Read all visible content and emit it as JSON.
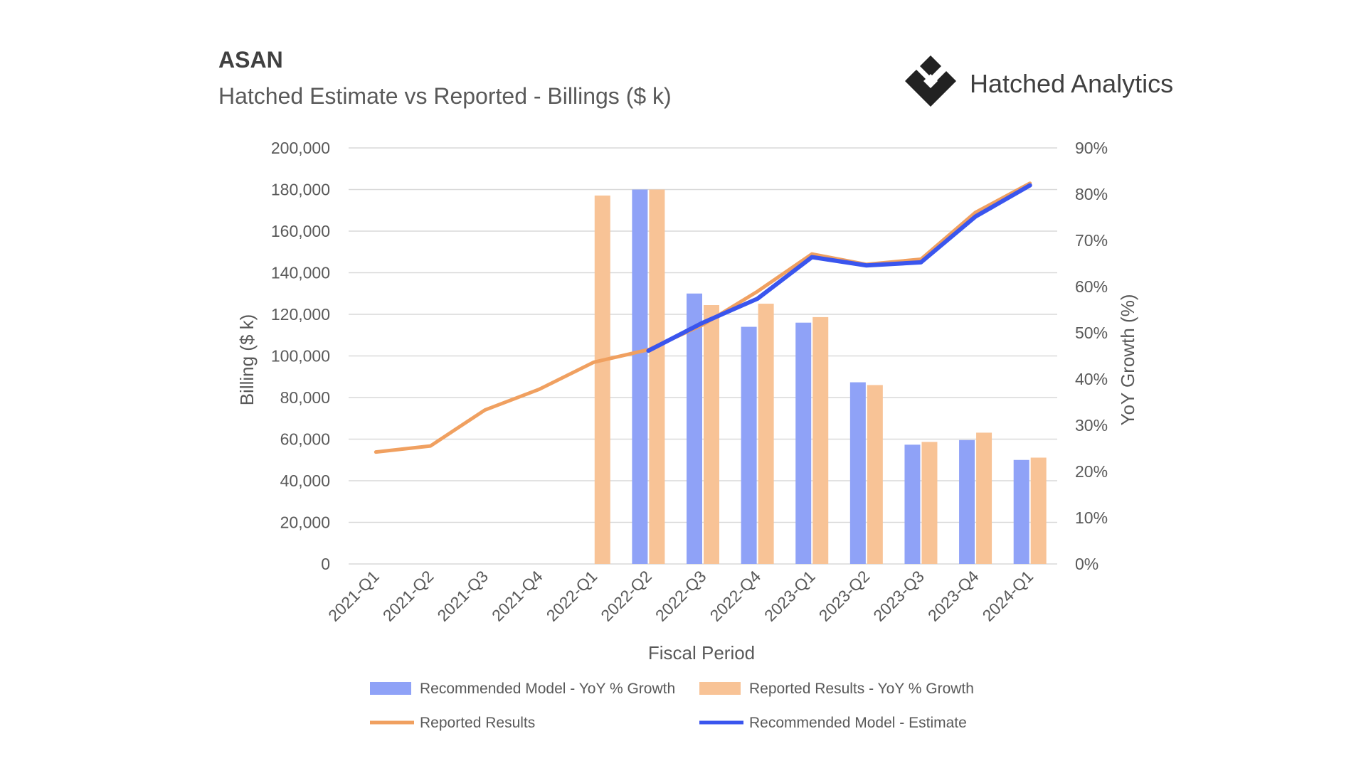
{
  "header": {
    "ticker": "ASAN",
    "subtitle": "Hatched Estimate vs Reported - Billings ($ k)",
    "brand_name": "Hatched Analytics",
    "brand_icon": "hatched-logo-icon"
  },
  "colors": {
    "recommended_bar": "#8fa2f7",
    "reported_bar": "#f8c396",
    "reported_line": "#f0a060",
    "recommended_line": "#3a55ee",
    "grid": "#d9d9d9"
  },
  "chart_data": {
    "type": "bar",
    "xlabel": "Fiscal Period",
    "ylabel": "Billing ($ k)",
    "y2label": "YoY Growth (%)",
    "ylim": [
      0,
      200000
    ],
    "y2lim": [
      0,
      90
    ],
    "grid": true,
    "legend_position": "bottom",
    "y_ticks": [
      "0",
      "20,000",
      "40,000",
      "60,000",
      "80,000",
      "100,000",
      "120,000",
      "140,000",
      "160,000",
      "180,000",
      "200,000"
    ],
    "y2_ticks": [
      "0%",
      "10%",
      "20%",
      "30%",
      "40%",
      "50%",
      "60%",
      "70%",
      "80%",
      "90%"
    ],
    "categories": [
      "2021-Q1",
      "2021-Q2",
      "2021-Q3",
      "2021-Q4",
      "2022-Q1",
      "2022-Q2",
      "2022-Q3",
      "2022-Q4",
      "2023-Q1",
      "2023-Q2",
      "2023-Q3",
      "2023-Q4",
      "2024-Q1"
    ],
    "series": [
      {
        "name": "Recommended Model - YoY % Growth",
        "type": "bar",
        "axis": "right",
        "values": [
          null,
          null,
          null,
          null,
          null,
          81,
          58.5,
          51.3,
          52.2,
          39.3,
          25.8,
          26.8,
          22.5
        ]
      },
      {
        "name": "Reported Results - YoY % Growth",
        "type": "bar",
        "axis": "right",
        "values": [
          null,
          null,
          null,
          null,
          79.7,
          81,
          56,
          56.3,
          53.4,
          38.7,
          26.4,
          28.4,
          23
        ]
      },
      {
        "name": "Reported Results",
        "type": "line",
        "axis": "left",
        "values": [
          53800,
          56700,
          74000,
          84000,
          97000,
          103000,
          115000,
          131000,
          149000,
          144000,
          146500,
          169000,
          183000
        ]
      },
      {
        "name": "Recommended Model - Estimate",
        "type": "line",
        "axis": "left",
        "values": [
          null,
          null,
          null,
          null,
          null,
          102500,
          116000,
          127500,
          147500,
          143500,
          145000,
          167000,
          182000
        ]
      }
    ]
  }
}
